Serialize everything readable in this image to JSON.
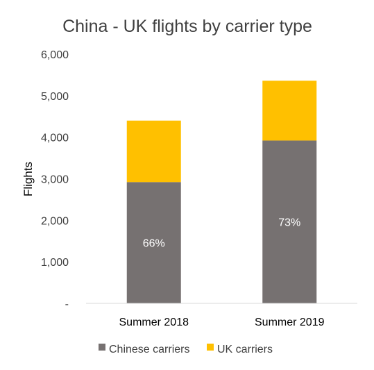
{
  "chart_data": {
    "type": "bar",
    "stacked": true,
    "title": "China - UK flights by carrier type",
    "xlabel": "",
    "ylabel": "Flights",
    "categories": [
      "Summer 2018",
      "Summer 2019"
    ],
    "series": [
      {
        "name": "Chinese carriers",
        "color": "#767171",
        "values": [
          2920,
          3920
        ],
        "data_labels": [
          "66%",
          "73%"
        ]
      },
      {
        "name": "UK carriers",
        "color": "#FFC000",
        "values": [
          1480,
          1440
        ]
      }
    ],
    "ylim": [
      0,
      6000
    ],
    "yticks": [
      0,
      1000,
      2000,
      3000,
      4000,
      5000,
      6000
    ],
    "ytick_labels": [
      "-",
      "1,000",
      "2,000",
      "3,000",
      "4,000",
      "5,000",
      "6,000"
    ],
    "grid": false,
    "legend_position": "bottom"
  }
}
